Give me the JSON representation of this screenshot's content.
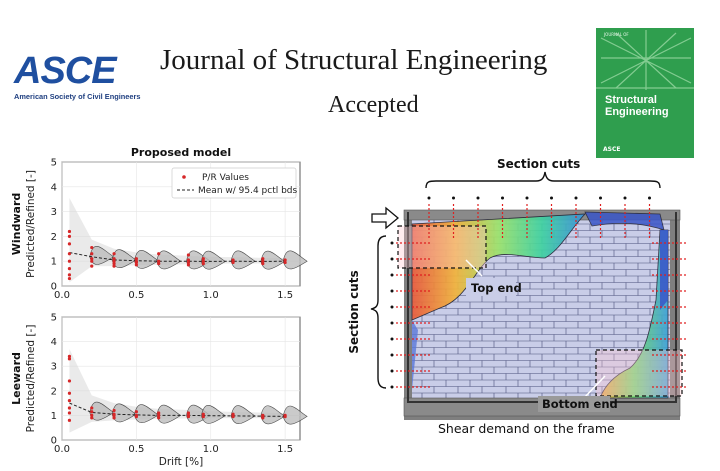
{
  "header": {
    "logo_word": "ASCE",
    "logo_subtitle": "American Society of Civil Engineers",
    "journal_title": "Journal of Structural Engineering",
    "status": "Accepted"
  },
  "cover": {
    "kicker": "JOURNAL OF",
    "title_line1": "Structural",
    "title_line2": "Engineering",
    "footer": "ASCE",
    "color": "#2f9e4e"
  },
  "chart_data": [
    {
      "type": "scatter",
      "title": "Proposed model",
      "row_label": "Windward",
      "ylabel": "Predicted/Refined [-]",
      "xlabel": "",
      "xlim": [
        0,
        1.6
      ],
      "ylim": [
        0,
        5
      ],
      "xticks": [
        "0.0",
        "0.5",
        "1.0",
        "1.5"
      ],
      "yticks": [
        "0",
        "1",
        "2",
        "3",
        "4",
        "5"
      ],
      "legend": {
        "placement": "top-right",
        "entries": [
          "P/R Values",
          "Mean w/ 95.4 pctl bds"
        ]
      },
      "points_color": "#d62728",
      "points_x": [
        0.05,
        0.05,
        0.05,
        0.05,
        0.05,
        0.05,
        0.05,
        0.05,
        0.2,
        0.2,
        0.2,
        0.2,
        0.2,
        0.35,
        0.35,
        0.35,
        0.35,
        0.35,
        0.5,
        0.5,
        0.5,
        0.5,
        0.65,
        0.65,
        0.65,
        0.85,
        0.85,
        0.85,
        0.85,
        0.95,
        0.95,
        0.95,
        1.15,
        1.15,
        1.15,
        1.35,
        1.35,
        1.35,
        1.5,
        1.5
      ],
      "points_y": [
        2.2,
        2.0,
        1.7,
        1.3,
        1.0,
        0.7,
        0.45,
        0.3,
        1.55,
        1.3,
        1.1,
        1.0,
        0.8,
        1.3,
        1.1,
        1.0,
        0.9,
        0.8,
        1.1,
        1.0,
        0.95,
        0.85,
        1.3,
        1.0,
        0.9,
        1.25,
        1.05,
        0.95,
        0.85,
        1.1,
        1.0,
        0.9,
        1.05,
        1.0,
        0.95,
        1.1,
        1.0,
        0.9,
        1.05,
        0.95
      ],
      "mean_x": [
        0.05,
        0.2,
        0.35,
        0.5,
        0.65,
        0.85,
        0.95,
        1.15,
        1.35,
        1.5
      ],
      "mean_y": [
        1.35,
        1.18,
        1.05,
        1.02,
        1.0,
        1.0,
        0.99,
        1.0,
        0.99,
        1.0
      ]
    },
    {
      "type": "scatter",
      "title": "",
      "row_label": "Leeward",
      "ylabel": "Predicted/Refined [-]",
      "xlabel": "Drift [%]",
      "xlim": [
        0,
        1.6
      ],
      "ylim": [
        0,
        5
      ],
      "xticks": [
        "0.0",
        "0.5",
        "1.0",
        "1.5"
      ],
      "yticks": [
        "0",
        "1",
        "2",
        "3",
        "4",
        "5"
      ],
      "points_color": "#d62728",
      "points_x": [
        0.05,
        0.05,
        0.05,
        0.05,
        0.05,
        0.05,
        0.05,
        0.05,
        0.2,
        0.2,
        0.2,
        0.2,
        0.35,
        0.35,
        0.35,
        0.35,
        0.5,
        0.5,
        0.5,
        0.65,
        0.65,
        0.65,
        0.85,
        0.85,
        0.85,
        0.95,
        0.95,
        1.15,
        1.15,
        1.15,
        1.35,
        1.35,
        1.35,
        1.5,
        1.5
      ],
      "points_y": [
        3.4,
        3.3,
        2.4,
        1.9,
        1.6,
        1.3,
        1.1,
        0.8,
        1.3,
        1.15,
        1.0,
        0.9,
        1.2,
        1.05,
        1.0,
        0.9,
        1.15,
        1.0,
        0.95,
        1.1,
        1.0,
        0.9,
        1.1,
        1.0,
        0.95,
        1.05,
        0.95,
        1.05,
        1.0,
        0.95,
        1.0,
        0.95,
        0.9,
        1.0,
        0.95
      ],
      "mean_x": [
        0.05,
        0.2,
        0.35,
        0.5,
        0.65,
        0.85,
        0.95,
        1.15,
        1.35,
        1.5
      ],
      "mean_y": [
        1.5,
        1.12,
        1.05,
        1.02,
        1.0,
        1.0,
        0.99,
        0.98,
        0.97,
        0.96
      ]
    }
  ],
  "diagram": {
    "section_cuts_top": "Section cuts",
    "section_cuts_left": "Section cuts",
    "top_end": "Top end",
    "bottom_end": "Bottom end",
    "caption": "Shear demand on the frame"
  }
}
